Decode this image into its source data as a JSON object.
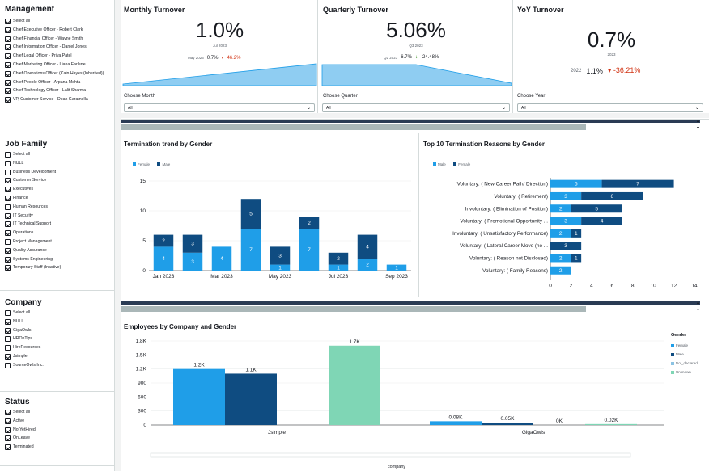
{
  "filters": {
    "management": {
      "title": "Management",
      "items": [
        {
          "label": "Select all",
          "checked": true
        },
        {
          "label": "Chief Executive Officer - Robert Clark",
          "checked": true
        },
        {
          "label": "Chief Financial Officer - Wayne Smith",
          "checked": true
        },
        {
          "label": "Chief Information Officer - Daniel Jones",
          "checked": true
        },
        {
          "label": "Chief Legal Officer - Priya Patel",
          "checked": true
        },
        {
          "label": "Chief Marketing Officer - Liana Earlene",
          "checked": true
        },
        {
          "label": "Chief Operations Officer (Cain Hayes (Inherited))",
          "checked": true
        },
        {
          "label": "Chief People Officer - Arpana Mehta",
          "checked": true
        },
        {
          "label": "Chief Technology Officer - Lalit Sharma",
          "checked": true
        },
        {
          "label": "VP, Customer Service - Dean Garamella",
          "checked": true
        }
      ]
    },
    "job_family": {
      "title": "Job Family",
      "items": [
        {
          "label": "Select all",
          "checked": false
        },
        {
          "label": "NULL",
          "checked": false
        },
        {
          "label": "Business Development",
          "checked": false
        },
        {
          "label": "Customer Service",
          "checked": true
        },
        {
          "label": "Executives",
          "checked": true
        },
        {
          "label": "Finance",
          "checked": true
        },
        {
          "label": "Human Resources",
          "checked": false
        },
        {
          "label": "IT Security",
          "checked": true
        },
        {
          "label": "IT Technical Support",
          "checked": true
        },
        {
          "label": "Operations",
          "checked": true
        },
        {
          "label": "Project Management",
          "checked": false
        },
        {
          "label": "Quality Assurance",
          "checked": true
        },
        {
          "label": "Systems Engineering",
          "checked": true
        },
        {
          "label": "Temporary Staff (Inactive)",
          "checked": true
        }
      ]
    },
    "company": {
      "title": "Company",
      "items": [
        {
          "label": "Select all",
          "checked": false
        },
        {
          "label": "NULL",
          "checked": true
        },
        {
          "label": "GigaOwls",
          "checked": true
        },
        {
          "label": "HROnTips",
          "checked": false
        },
        {
          "label": "HireResources",
          "checked": false
        },
        {
          "label": "Jsimple",
          "checked": true
        },
        {
          "label": "SourceOwls Inc.",
          "checked": false
        }
      ]
    },
    "status": {
      "title": "Status",
      "items": [
        {
          "label": "Select all",
          "checked": true
        },
        {
          "label": "Active",
          "checked": true
        },
        {
          "label": "NotYetHired",
          "checked": true
        },
        {
          "label": "OnLeave",
          "checked": true
        },
        {
          "label": "Terminated",
          "checked": true
        }
      ]
    }
  },
  "kpis": {
    "monthly": {
      "title": "Monthly Turnover",
      "value": "1.0%",
      "period": "Jul 2023",
      "prev_label": "May 2023",
      "prev_value": "0.7%",
      "change": "46.2%",
      "change_color": "#d13212"
    },
    "quarterly": {
      "title": "Quarterly Turnover",
      "value": "5.06%",
      "period": "Q3 2023",
      "prev_label": "Q2 2023",
      "prev_value": "6.7%",
      "change": "-24.48%",
      "change_color": "#1d8102"
    },
    "yoy": {
      "title": "YoY Turnover",
      "value": "0.7%",
      "period": "2023",
      "prev_label": "2022",
      "prev_value": "1.1%",
      "change": "-36.21%",
      "change_color": "#d13212"
    }
  },
  "controls": {
    "month": {
      "label": "Choose Month",
      "value": "All"
    },
    "quarter": {
      "label": "Choose Quarter",
      "value": "All"
    },
    "year": {
      "label": "Choose Year",
      "value": "All"
    }
  },
  "colors": {
    "female": "#1f9ee8",
    "male": "#0f4c81",
    "not_declared": "#8cc3e3",
    "unknown": "#7fd6b5",
    "area": "#8fcdf2"
  },
  "termination_trend": {
    "title": "Termination trend by Gender",
    "legend": [
      "Female",
      "Male"
    ],
    "chart_data": {
      "type": "bar",
      "stacked": true,
      "categories": [
        "Jan 2023",
        "Feb 2023",
        "Mar 2023",
        "Apr 2023",
        "May 2023",
        "Jun 2023",
        "Jul 2023",
        "Aug 2023",
        "Sep 2023"
      ],
      "x_tick_labels": [
        "Jan 2023",
        "Mar 2023",
        "May 2023",
        "Jul 2023",
        "Sep 2023"
      ],
      "series": [
        {
          "name": "Female",
          "values": [
            4,
            3,
            4,
            7,
            1,
            7,
            1,
            2,
            1
          ]
        },
        {
          "name": "Male",
          "values": [
            2,
            3,
            0,
            5,
            3,
            2,
            2,
            4,
            0
          ]
        }
      ],
      "ylim": [
        0,
        15
      ],
      "yticks": [
        0,
        5,
        10,
        15
      ]
    }
  },
  "termination_reasons": {
    "title": "Top 10 Termination Reasons by Gender",
    "legend": [
      "Male",
      "Female"
    ],
    "chart_data": {
      "type": "bar",
      "orientation": "horizontal",
      "stacked": true,
      "categories": [
        "Voluntary: ( New Career Path/ Direction)",
        "Voluntary: ( Retirement)",
        "Involuntary: ( Elimination of Position)",
        "Voluntary: ( Promotional Opportunity ...",
        "Involuntary: ( Unsatisfactory Performance)",
        "Voluntary: ( Lateral Career Move (no ...",
        "Voluntary: ( Reason not Disclosed)",
        "Voluntary: ( Family Reasons)"
      ],
      "series": [
        {
          "name": "Female",
          "values": [
            5,
            3,
            2,
            3,
            2,
            0,
            2,
            2
          ]
        },
        {
          "name": "Male",
          "values": [
            7,
            6,
            5,
            4,
            1,
            3,
            1,
            0
          ]
        }
      ],
      "xlim": [
        0,
        14
      ],
      "xticks": [
        0,
        2,
        4,
        6,
        8,
        10,
        12,
        14
      ]
    }
  },
  "employees_by_company": {
    "title": "Employees by Company and Gender",
    "legend_title": "Gender",
    "legend": [
      "Female",
      "Male",
      "Not_declared",
      "Unknown"
    ],
    "chart_data": {
      "type": "bar",
      "categories": [
        "Jsimple",
        "GigaOwls"
      ],
      "series": [
        {
          "name": "Female",
          "values": [
            1200,
            80
          ]
        },
        {
          "name": "Male",
          "values": [
            1100,
            50
          ]
        },
        {
          "name": "Not_declared",
          "values": [
            0,
            0
          ]
        },
        {
          "name": "Unknown",
          "values": [
            1700,
            20
          ]
        }
      ],
      "data_labels": [
        [
          "1.2K",
          "0.08K"
        ],
        [
          "1.1K",
          "0.05K"
        ],
        [
          "",
          "0K"
        ],
        [
          "1.7K",
          "0.02K"
        ]
      ],
      "ylim": [
        0,
        1800
      ],
      "ytick_labels": [
        "0",
        "300",
        "600",
        "900",
        "1.2K",
        "1.5K",
        "1.8K"
      ],
      "xlabel": "company"
    }
  }
}
